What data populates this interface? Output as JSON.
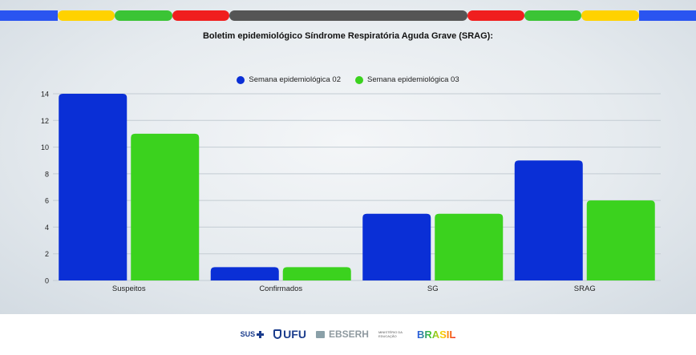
{
  "colors": {
    "series1": "#0a2fd6",
    "series2": "#3bd21e",
    "stripe": [
      "#2a54f0",
      "#ffd200",
      "#3bc435",
      "#f01e1e",
      "#555555",
      "#f01e1e",
      "#3bc435",
      "#ffd200",
      "#2a54f0"
    ]
  },
  "chart_data": {
    "type": "bar",
    "title": "Boletim epidemiológico Síndrome Respiratória Aguda Grave (SRAG):",
    "xlabel": "",
    "ylabel": "",
    "categories": [
      "Suspeitos",
      "Confirmados",
      "SG",
      "SRAG"
    ],
    "series": [
      {
        "name": "Semana epidemiológica 02",
        "values": [
          14,
          1,
          5,
          9
        ]
      },
      {
        "name": "Semana epidemiológica 03",
        "values": [
          11,
          1,
          5,
          6
        ]
      }
    ],
    "ylim": [
      0,
      14
    ],
    "yticks": [
      "0",
      "2",
      "4",
      "6",
      "8",
      "10",
      "12",
      "14"
    ],
    "grid": true,
    "legend_position": "top-center"
  },
  "footer": {
    "logo_sus": "SUS",
    "logo_ufu": "UFU",
    "logo_ebserh": "EBSERH",
    "logo_ministerio": "MINISTÉRIO DA EDUCAÇÃO",
    "logo_governo": "BRASIL"
  }
}
